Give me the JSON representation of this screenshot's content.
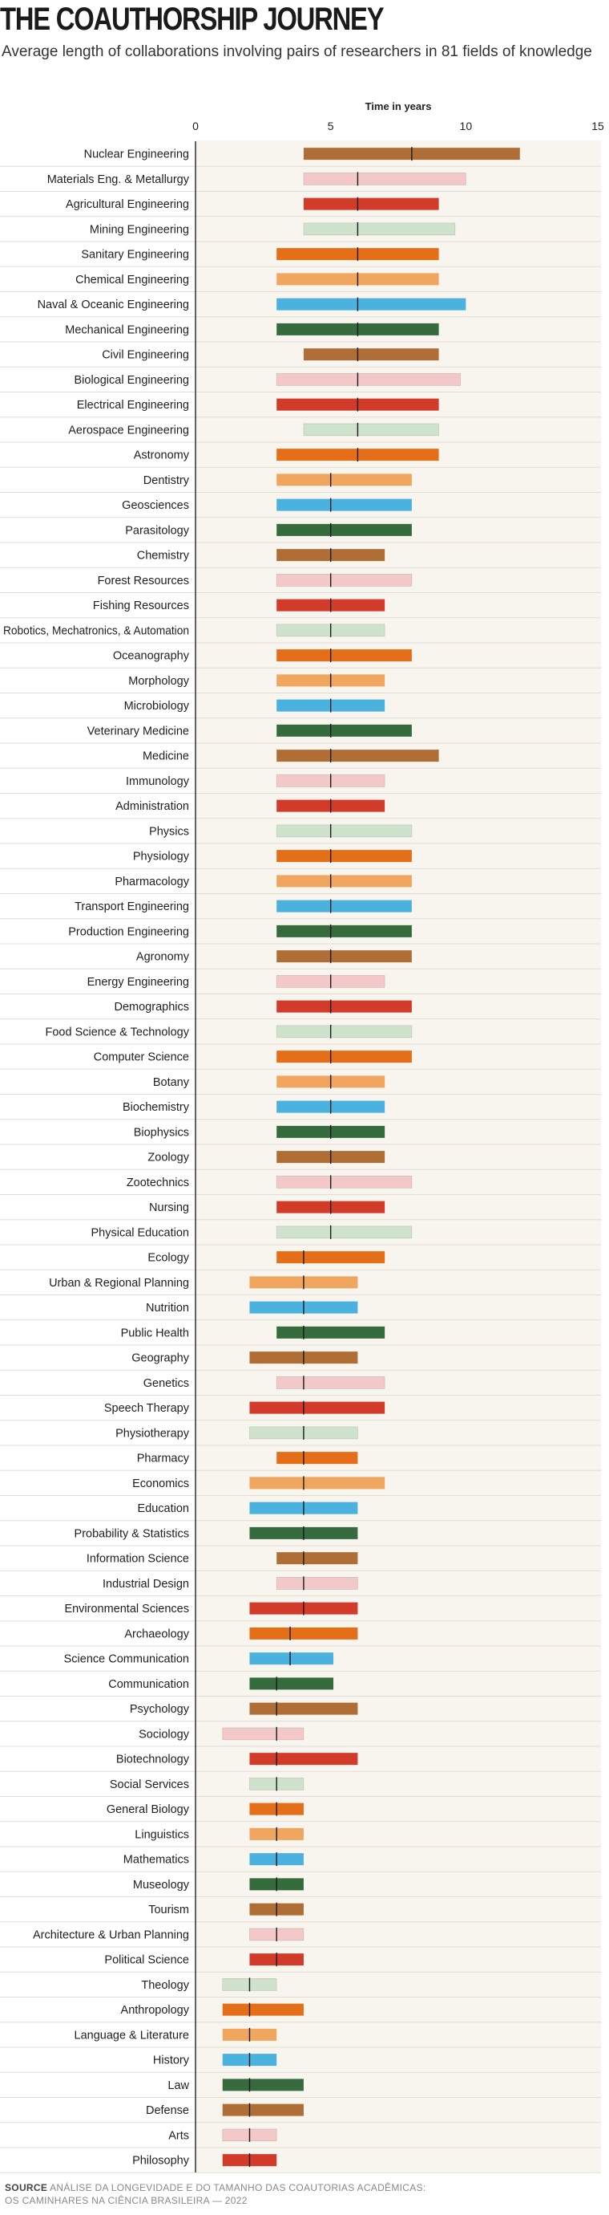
{
  "title": "THE COAUTHORSHIP JOURNEY",
  "subtitle": "Average length of collaborations involving pairs of researchers in 81 fields of knowledge",
  "source_label": "SOURCE",
  "source_line1": "ANÁLISE DA LONGEVIDADE E DO TAMANHO DAS COAUTORIAS ACADÊMICAS:",
  "source_line2": "OS CAMINHARES NA CIÊNCIA BRASILEIRA — 2022",
  "chart_data": {
    "type": "bar",
    "xlabel": "Time in years",
    "xlim": [
      0,
      15
    ],
    "xticks": [
      0,
      5,
      10,
      15
    ],
    "marker": "vertical tick marks the average length inside each range bar",
    "colors": {
      "brown": "#b06e37",
      "pink": "#f2c8c8",
      "red": "#d23b2a",
      "lightgreen": "#cfe3cc",
      "orange": "#e56e18",
      "lightorange": "#f0a65f",
      "blue": "#4bb2e0",
      "darkgreen": "#356b3d",
      "background": "#f8f5ef"
    },
    "fields": [
      {
        "name": "Nuclear Engineering",
        "start": 4,
        "end": 12,
        "avg": 8,
        "color": "brown"
      },
      {
        "name": "Materials Eng. & Metallurgy",
        "start": 4,
        "end": 10,
        "avg": 6,
        "color": "pink"
      },
      {
        "name": "Agricultural Engineering",
        "start": 4,
        "end": 9,
        "avg": 6,
        "color": "red"
      },
      {
        "name": "Mining Engineering",
        "start": 4,
        "end": 9.6,
        "avg": 6,
        "color": "lightgreen"
      },
      {
        "name": "Sanitary Engineering",
        "start": 3,
        "end": 9,
        "avg": 6,
        "color": "orange"
      },
      {
        "name": "Chemical Engineering",
        "start": 3,
        "end": 9,
        "avg": 6,
        "color": "lightorange"
      },
      {
        "name": "Naval & Oceanic Engineering",
        "start": 3,
        "end": 10,
        "avg": 6,
        "color": "blue"
      },
      {
        "name": "Mechanical Engineering",
        "start": 3,
        "end": 9,
        "avg": 6,
        "color": "darkgreen"
      },
      {
        "name": "Civil Engineering",
        "start": 4,
        "end": 9,
        "avg": 6,
        "color": "brown"
      },
      {
        "name": "Biological Engineering",
        "start": 3,
        "end": 9.8,
        "avg": 6,
        "color": "pink"
      },
      {
        "name": "Electrical Engineering",
        "start": 3,
        "end": 9,
        "avg": 6,
        "color": "red"
      },
      {
        "name": "Aerospace Engineering",
        "start": 4,
        "end": 9,
        "avg": 6,
        "color": "lightgreen"
      },
      {
        "name": "Astronomy",
        "start": 3,
        "end": 9,
        "avg": 6,
        "color": "orange"
      },
      {
        "name": "Dentistry",
        "start": 3,
        "end": 8,
        "avg": 5,
        "color": "lightorange"
      },
      {
        "name": "Geosciences",
        "start": 3,
        "end": 8,
        "avg": 5,
        "color": "blue"
      },
      {
        "name": "Parasitology",
        "start": 3,
        "end": 8,
        "avg": 5,
        "color": "darkgreen"
      },
      {
        "name": "Chemistry",
        "start": 3,
        "end": 7,
        "avg": 5,
        "color": "brown"
      },
      {
        "name": "Forest Resources",
        "start": 3,
        "end": 8,
        "avg": 5,
        "color": "pink"
      },
      {
        "name": "Fishing Resources",
        "start": 3,
        "end": 7,
        "avg": 5,
        "color": "red"
      },
      {
        "name": "Robotics, Mechatronics, & Automation",
        "start": 3,
        "end": 7,
        "avg": 5,
        "color": "lightgreen"
      },
      {
        "name": "Oceanography",
        "start": 3,
        "end": 8,
        "avg": 5,
        "color": "orange"
      },
      {
        "name": "Morphology",
        "start": 3,
        "end": 7,
        "avg": 5,
        "color": "lightorange"
      },
      {
        "name": "Microbiology",
        "start": 3,
        "end": 7,
        "avg": 5,
        "color": "blue"
      },
      {
        "name": "Veterinary Medicine",
        "start": 3,
        "end": 8,
        "avg": 5,
        "color": "darkgreen"
      },
      {
        "name": "Medicine",
        "start": 3,
        "end": 9,
        "avg": 5,
        "color": "brown"
      },
      {
        "name": "Immunology",
        "start": 3,
        "end": 7,
        "avg": 5,
        "color": "pink"
      },
      {
        "name": "Administration",
        "start": 3,
        "end": 7,
        "avg": 5,
        "color": "red"
      },
      {
        "name": "Physics",
        "start": 3,
        "end": 8,
        "avg": 5,
        "color": "lightgreen"
      },
      {
        "name": "Physiology",
        "start": 3,
        "end": 8,
        "avg": 5,
        "color": "orange"
      },
      {
        "name": "Pharmacology",
        "start": 3,
        "end": 8,
        "avg": 5,
        "color": "lightorange"
      },
      {
        "name": "Transport Engineering",
        "start": 3,
        "end": 8,
        "avg": 5,
        "color": "blue"
      },
      {
        "name": "Production Engineering",
        "start": 3,
        "end": 8,
        "avg": 5,
        "color": "darkgreen"
      },
      {
        "name": "Agronomy",
        "start": 3,
        "end": 8,
        "avg": 5,
        "color": "brown"
      },
      {
        "name": "Energy Engineering",
        "start": 3,
        "end": 7,
        "avg": 5,
        "color": "pink"
      },
      {
        "name": "Demographics",
        "start": 3,
        "end": 8,
        "avg": 5,
        "color": "red"
      },
      {
        "name": "Food Science & Technology",
        "start": 3,
        "end": 8,
        "avg": 5,
        "color": "lightgreen"
      },
      {
        "name": "Computer Science",
        "start": 3,
        "end": 8,
        "avg": 5,
        "color": "orange"
      },
      {
        "name": "Botany",
        "start": 3,
        "end": 7,
        "avg": 5,
        "color": "lightorange"
      },
      {
        "name": "Biochemistry",
        "start": 3,
        "end": 7,
        "avg": 5,
        "color": "blue"
      },
      {
        "name": "Biophysics",
        "start": 3,
        "end": 7,
        "avg": 5,
        "color": "darkgreen"
      },
      {
        "name": "Zoology",
        "start": 3,
        "end": 7,
        "avg": 5,
        "color": "brown"
      },
      {
        "name": "Zootechnics",
        "start": 3,
        "end": 8,
        "avg": 5,
        "color": "pink"
      },
      {
        "name": "Nursing",
        "start": 3,
        "end": 7,
        "avg": 5,
        "color": "red"
      },
      {
        "name": "Physical Education",
        "start": 3,
        "end": 8,
        "avg": 5,
        "color": "lightgreen"
      },
      {
        "name": "Ecology",
        "start": 3,
        "end": 7,
        "avg": 4,
        "color": "orange"
      },
      {
        "name": "Urban & Regional Planning",
        "start": 2,
        "end": 6,
        "avg": 4,
        "color": "lightorange"
      },
      {
        "name": "Nutrition",
        "start": 2,
        "end": 6,
        "avg": 4,
        "color": "blue"
      },
      {
        "name": "Public Health",
        "start": 3,
        "end": 7,
        "avg": 4,
        "color": "darkgreen"
      },
      {
        "name": "Geography",
        "start": 2,
        "end": 6,
        "avg": 4,
        "color": "brown"
      },
      {
        "name": "Genetics",
        "start": 3,
        "end": 7,
        "avg": 4,
        "color": "pink"
      },
      {
        "name": "Speech Therapy",
        "start": 2,
        "end": 7,
        "avg": 4,
        "color": "red"
      },
      {
        "name": "Physiotherapy",
        "start": 2,
        "end": 6,
        "avg": 4,
        "color": "lightgreen"
      },
      {
        "name": "Pharmacy",
        "start": 3,
        "end": 6,
        "avg": 4,
        "color": "orange"
      },
      {
        "name": "Economics",
        "start": 2,
        "end": 7,
        "avg": 4,
        "color": "lightorange"
      },
      {
        "name": "Education",
        "start": 2,
        "end": 6,
        "avg": 4,
        "color": "blue"
      },
      {
        "name": "Probability & Statistics",
        "start": 2,
        "end": 6,
        "avg": 4,
        "color": "darkgreen"
      },
      {
        "name": "Information Science",
        "start": 3,
        "end": 6,
        "avg": 4,
        "color": "brown"
      },
      {
        "name": "Industrial Design",
        "start": 3,
        "end": 6,
        "avg": 4,
        "color": "pink"
      },
      {
        "name": "Environmental Sciences",
        "start": 2,
        "end": 6,
        "avg": 4,
        "color": "red"
      },
      {
        "name": "Archaeology",
        "start": 2,
        "end": 6,
        "avg": 3.5,
        "color": "orange"
      },
      {
        "name": "Science Communication",
        "start": 2,
        "end": 5.1,
        "avg": 3.5,
        "color": "blue"
      },
      {
        "name": "Communication",
        "start": 2,
        "end": 5.1,
        "avg": 3,
        "color": "darkgreen"
      },
      {
        "name": "Psychology",
        "start": 2,
        "end": 6,
        "avg": 3,
        "color": "brown"
      },
      {
        "name": "Sociology",
        "start": 1,
        "end": 4,
        "avg": 3,
        "color": "pink"
      },
      {
        "name": "Biotechnology",
        "start": 2,
        "end": 6,
        "avg": 3,
        "color": "red"
      },
      {
        "name": "Social Services",
        "start": 2,
        "end": 4,
        "avg": 3,
        "color": "lightgreen"
      },
      {
        "name": "General Biology",
        "start": 2,
        "end": 4,
        "avg": 3,
        "color": "orange"
      },
      {
        "name": "Linguistics",
        "start": 2,
        "end": 4,
        "avg": 3,
        "color": "lightorange"
      },
      {
        "name": "Mathematics",
        "start": 2,
        "end": 4,
        "avg": 3,
        "color": "blue"
      },
      {
        "name": "Museology",
        "start": 2,
        "end": 4,
        "avg": 3,
        "color": "darkgreen"
      },
      {
        "name": "Tourism",
        "start": 2,
        "end": 4,
        "avg": 3,
        "color": "brown"
      },
      {
        "name": "Architecture & Urban Planning",
        "start": 2,
        "end": 4,
        "avg": 3,
        "color": "pink"
      },
      {
        "name": "Political Science",
        "start": 2,
        "end": 4,
        "avg": 3,
        "color": "red"
      },
      {
        "name": "Theology",
        "start": 1,
        "end": 3,
        "avg": 2,
        "color": "lightgreen"
      },
      {
        "name": "Anthropology",
        "start": 1,
        "end": 4,
        "avg": 2,
        "color": "orange"
      },
      {
        "name": "Language & Literature",
        "start": 1,
        "end": 3,
        "avg": 2,
        "color": "lightorange"
      },
      {
        "name": "History",
        "start": 1,
        "end": 3,
        "avg": 2,
        "color": "blue"
      },
      {
        "name": "Law",
        "start": 1,
        "end": 4,
        "avg": 2,
        "color": "darkgreen"
      },
      {
        "name": "Defense",
        "start": 1,
        "end": 4,
        "avg": 2,
        "color": "brown"
      },
      {
        "name": "Arts",
        "start": 1,
        "end": 3,
        "avg": 2,
        "color": "pink"
      },
      {
        "name": "Philosophy",
        "start": 1,
        "end": 3,
        "avg": 2,
        "color": "red"
      }
    ]
  }
}
